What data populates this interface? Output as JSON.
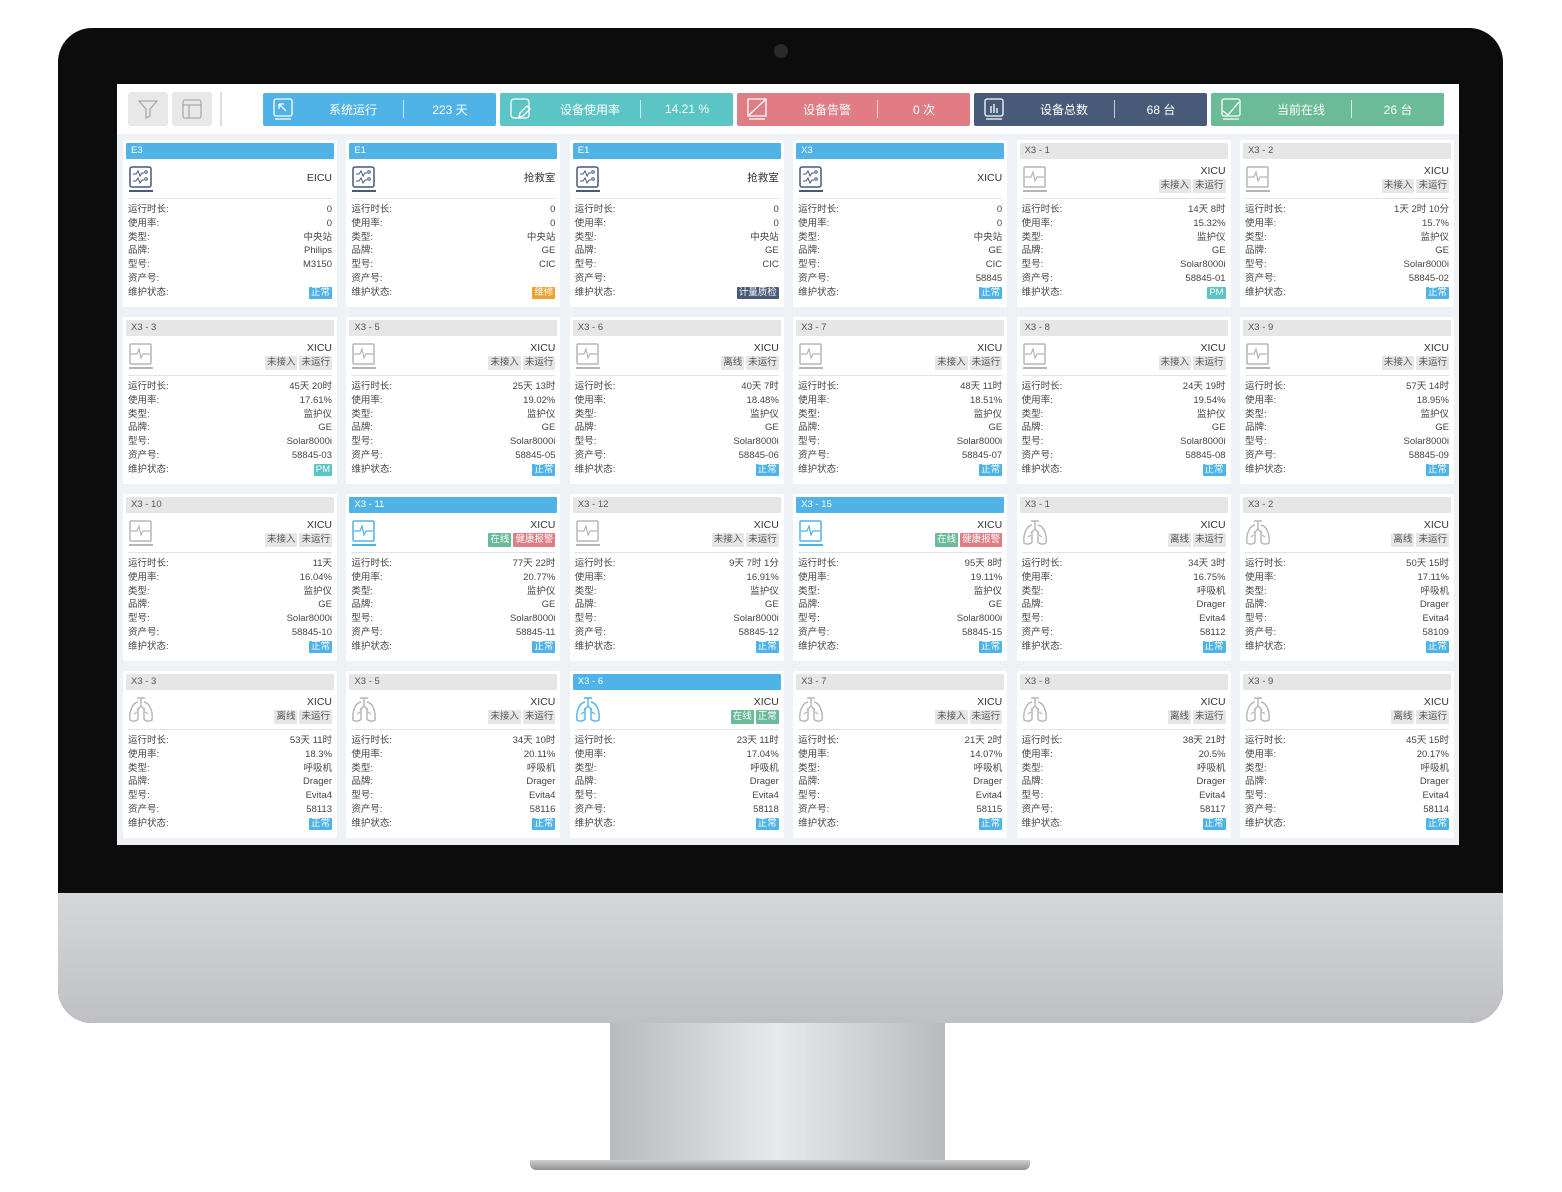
{
  "toolbar": {
    "filter_icon": "filter-icon",
    "layout_icon": "layout-icon"
  },
  "stats": [
    {
      "label": "系统运行",
      "value": "223 天",
      "color": "#4fb3e8",
      "icon": "cursor-icon"
    },
    {
      "label": "设备使用率",
      "value": "14.21 %",
      "color": "#5bc4c4",
      "icon": "edit-icon"
    },
    {
      "label": "设备告警",
      "value": "0 次",
      "color": "#e07c84",
      "icon": "alert-icon"
    },
    {
      "label": "设备总数",
      "value": "68 台",
      "color": "#475a78",
      "icon": "bar-chart-icon"
    },
    {
      "label": "当前在线",
      "value": "26 台",
      "color": "#6cbb98",
      "icon": "line-chart-icon"
    }
  ],
  "row_labels": [
    "运行时长:",
    "使用率:",
    "类型:",
    "品牌:",
    "型号:",
    "资产号:",
    "维护状态:"
  ],
  "colors": {
    "active": "#4fb3e8",
    "正常": "#4fb3e8",
    "维修": "#f0a030",
    "计量质检": "#475a78",
    "PM": "#5bc4c4",
    "在线": "#6cbb98",
    "健康报警": "#e07c84",
    "tag_正常": "#6cbb98"
  },
  "cards": [
    {
      "title": "E3",
      "active": true,
      "location": "EICU",
      "icon": "central-station",
      "tags": [],
      "values": [
        "0",
        "0",
        "中央站",
        "Philips",
        "M3150",
        ""
      ],
      "status": "正常"
    },
    {
      "title": "E1",
      "active": true,
      "location": "抢救室",
      "icon": "central-station",
      "tags": [],
      "values": [
        "0",
        "0",
        "中央站",
        "GE",
        "CIC",
        ""
      ],
      "status": "维修"
    },
    {
      "title": "E1",
      "active": true,
      "location": "抢救室",
      "icon": "central-station",
      "tags": [],
      "values": [
        "0",
        "0",
        "中央站",
        "GE",
        "CIC",
        ""
      ],
      "status": "计量质检"
    },
    {
      "title": "X3",
      "active": true,
      "location": "XICU",
      "icon": "central-station",
      "tags": [],
      "values": [
        "0",
        "0",
        "中央站",
        "GE",
        "CIC",
        "58845"
      ],
      "status": "正常"
    },
    {
      "title": "X3 - 1",
      "active": false,
      "location": "XICU",
      "icon": "monitor",
      "tags": [
        "未接入",
        "未运行"
      ],
      "values": [
        "14天 8时",
        "15.32%",
        "监护仪",
        "GE",
        "Solar8000i",
        "58845-01"
      ],
      "status": "PM"
    },
    {
      "title": "X3 - 2",
      "active": false,
      "location": "XICU",
      "icon": "monitor",
      "tags": [
        "未接入",
        "未运行"
      ],
      "values": [
        "1天 2时 10分",
        "15.7%",
        "监护仪",
        "GE",
        "Solar8000i",
        "58845-02"
      ],
      "status": "正常"
    },
    {
      "title": "X3 - 3",
      "active": false,
      "location": "XICU",
      "icon": "monitor",
      "tags": [
        "未接入",
        "未运行"
      ],
      "values": [
        "45天 20时",
        "17.61%",
        "监护仪",
        "GE",
        "Solar8000i",
        "58845-03"
      ],
      "status": "PM"
    },
    {
      "title": "X3 - 5",
      "active": false,
      "location": "XICU",
      "icon": "monitor",
      "tags": [
        "未接入",
        "未运行"
      ],
      "values": [
        "25天 13时",
        "19.02%",
        "监护仪",
        "GE",
        "Solar8000i",
        "58845-05"
      ],
      "status": "正常"
    },
    {
      "title": "X3 - 6",
      "active": false,
      "location": "XICU",
      "icon": "monitor",
      "tags": [
        "离线",
        "未运行"
      ],
      "values": [
        "40天 7时",
        "18.48%",
        "监护仪",
        "GE",
        "Solar8000i",
        "58845-06"
      ],
      "status": "正常"
    },
    {
      "title": "X3 - 7",
      "active": false,
      "location": "XICU",
      "icon": "monitor",
      "tags": [
        "未接入",
        "未运行"
      ],
      "values": [
        "48天 11时",
        "18.51%",
        "监护仪",
        "GE",
        "Solar8000i",
        "58845-07"
      ],
      "status": "正常"
    },
    {
      "title": "X3 - 8",
      "active": false,
      "location": "XICU",
      "icon": "monitor",
      "tags": [
        "未接入",
        "未运行"
      ],
      "values": [
        "24天 19时",
        "19.54%",
        "监护仪",
        "GE",
        "Solar8000i",
        "58845-08"
      ],
      "status": "正常"
    },
    {
      "title": "X3 - 9",
      "active": false,
      "location": "XICU",
      "icon": "monitor",
      "tags": [
        "未接入",
        "未运行"
      ],
      "values": [
        "57天 14时",
        "18.95%",
        "监护仪",
        "GE",
        "Solar8000i",
        "58845-09"
      ],
      "status": "正常"
    },
    {
      "title": "X3 - 10",
      "active": false,
      "location": "XICU",
      "icon": "monitor",
      "tags": [
        "未接入",
        "未运行"
      ],
      "values": [
        "11天",
        "16.04%",
        "监护仪",
        "GE",
        "Solar8000i",
        "58845-10"
      ],
      "status": "正常"
    },
    {
      "title": "X3 - 11",
      "active": true,
      "location": "XICU",
      "icon": "monitor",
      "tags": [
        "在线",
        "健康报警"
      ],
      "values": [
        "77天 22时",
        "20.77%",
        "监护仪",
        "GE",
        "Solar8000i",
        "58845-11"
      ],
      "status": "正常"
    },
    {
      "title": "X3 - 12",
      "active": false,
      "location": "XICU",
      "icon": "monitor",
      "tags": [
        "未接入",
        "未运行"
      ],
      "values": [
        "9天 7时 1分",
        "16.91%",
        "监护仪",
        "GE",
        "Solar8000i",
        "58845-12"
      ],
      "status": "正常"
    },
    {
      "title": "X3 - 15",
      "active": true,
      "location": "XICU",
      "icon": "monitor",
      "tags": [
        "在线",
        "健康报警"
      ],
      "values": [
        "95天 8时",
        "19.11%",
        "监护仪",
        "GE",
        "Solar8000i",
        "58845-15"
      ],
      "status": "正常"
    },
    {
      "title": "X3 - 1",
      "active": false,
      "location": "XICU",
      "icon": "ventilator",
      "tags": [
        "离线",
        "未运行"
      ],
      "values": [
        "34天 3时",
        "16.75%",
        "呼吸机",
        "Drager",
        "Evita4",
        "58112"
      ],
      "status": "正常"
    },
    {
      "title": "X3 - 2",
      "active": false,
      "location": "XICU",
      "icon": "ventilator",
      "tags": [
        "离线",
        "未运行"
      ],
      "values": [
        "50天 15时",
        "17.11%",
        "呼吸机",
        "Drager",
        "Evita4",
        "58109"
      ],
      "status": "正常"
    },
    {
      "title": "X3 - 3",
      "active": false,
      "location": "XICU",
      "icon": "ventilator",
      "tags": [
        "离线",
        "未运行"
      ],
      "values": [
        "53天 11时",
        "18.3%",
        "呼吸机",
        "Drager",
        "Evita4",
        "58113"
      ],
      "status": "正常"
    },
    {
      "title": "X3 - 5",
      "active": false,
      "location": "XICU",
      "icon": "ventilator",
      "tags": [
        "未接入",
        "未运行"
      ],
      "values": [
        "34天 10时",
        "20.11%",
        "呼吸机",
        "Drager",
        "Evita4",
        "58116"
      ],
      "status": "正常"
    },
    {
      "title": "X3 - 6",
      "active": true,
      "location": "XICU",
      "icon": "ventilator",
      "tags": [
        "在线",
        "正常"
      ],
      "values": [
        "23天 11时",
        "17.04%",
        "呼吸机",
        "Drager",
        "Evita4",
        "58118"
      ],
      "status": "正常"
    },
    {
      "title": "X3 - 7",
      "active": false,
      "location": "XICU",
      "icon": "ventilator",
      "tags": [
        "未接入",
        "未运行"
      ],
      "values": [
        "21天 2时",
        "14.07%",
        "呼吸机",
        "Drager",
        "Evita4",
        "58115"
      ],
      "status": "正常"
    },
    {
      "title": "X3 - 8",
      "active": false,
      "location": "XICU",
      "icon": "ventilator",
      "tags": [
        "离线",
        "未运行"
      ],
      "values": [
        "38天 21时",
        "20.5%",
        "呼吸机",
        "Drager",
        "Evita4",
        "58117"
      ],
      "status": "正常"
    },
    {
      "title": "X3 - 9",
      "active": false,
      "location": "XICU",
      "icon": "ventilator",
      "tags": [
        "离线",
        "未运行"
      ],
      "values": [
        "45天 15时",
        "20.17%",
        "呼吸机",
        "Drager",
        "Evita4",
        "58114"
      ],
      "status": "正常"
    }
  ]
}
